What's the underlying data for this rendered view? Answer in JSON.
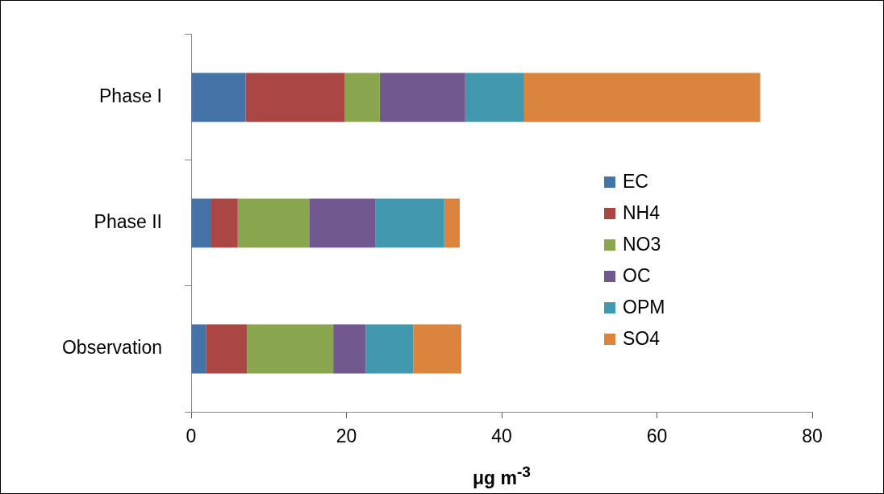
{
  "chart_data": {
    "type": "bar",
    "orientation": "horizontal",
    "stacked": true,
    "xlabel": "μg m$^{-3}$",
    "categories": [
      "Phase I",
      "Phase II",
      "Observation"
    ],
    "series": [
      {
        "name": "EC",
        "color": "#4572a7",
        "values": [
          7.0,
          2.5,
          1.9
        ]
      },
      {
        "name": "NH4",
        "color": "#aa4643",
        "values": [
          12.8,
          3.5,
          5.3
        ]
      },
      {
        "name": "NO3",
        "color": "#89a54e",
        "values": [
          4.5,
          9.2,
          11.1
        ]
      },
      {
        "name": "OC",
        "color": "#71588f",
        "values": [
          11.0,
          8.5,
          4.2
        ]
      },
      {
        "name": "OPM",
        "color": "#4198af",
        "values": [
          7.6,
          8.9,
          6.1
        ]
      },
      {
        "name": "SO4",
        "color": "#db843d",
        "values": [
          30.4,
          2.0,
          6.2
        ]
      }
    ],
    "xlim": [
      0,
      80
    ],
    "xticks": [
      0,
      20,
      40,
      60,
      80
    ],
    "grid": false,
    "legend": "right"
  }
}
